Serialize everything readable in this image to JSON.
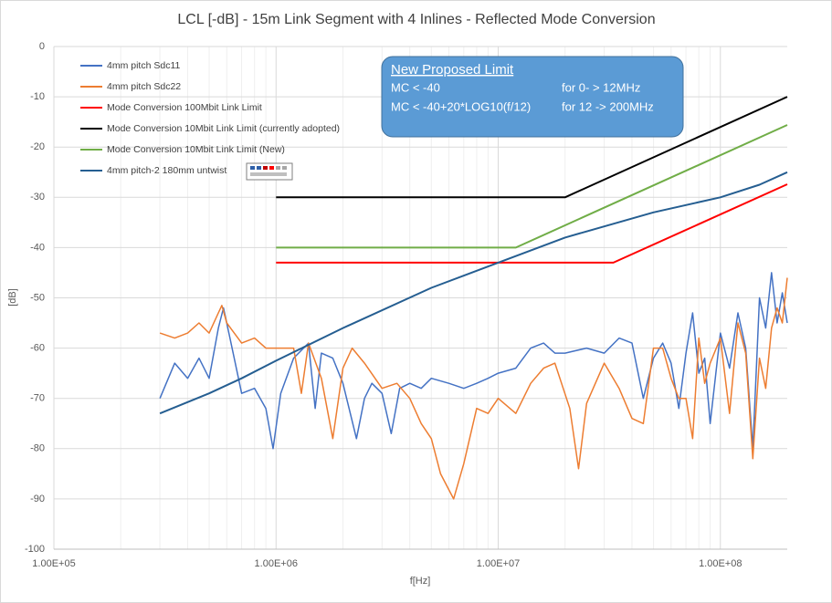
{
  "chart_data": {
    "type": "line",
    "title": "LCL [-dB] - 15m Link Segment with 4 Inlines - Reflected Mode Conversion",
    "x_label": "f[Hz]",
    "y_label": "[dB]",
    "log_x": true,
    "grid": true,
    "minor_grid": true,
    "legend": "upper left",
    "xlim": [
      100000,
      200000000
    ],
    "ylim": [
      -100,
      0
    ],
    "xticks": [
      {
        "value": 100000,
        "label": "1.00E+05"
      },
      {
        "value": 1000000,
        "label": "1.00E+06"
      },
      {
        "value": 10000000,
        "label": "1.00E+07"
      },
      {
        "value": 100000000,
        "label": "1.00E+08"
      }
    ],
    "yticks": [
      0,
      -10,
      -20,
      -30,
      -40,
      -50,
      -60,
      -70,
      -80,
      -90,
      -100
    ],
    "annotation": {
      "title": "New Proposed Limit",
      "lines": [
        [
          "MC < -40",
          "for 0- > 12MHz"
        ],
        [
          "MC < -40+20*LOG10(f/12)",
          "for 12 -> 200MHz"
        ]
      ]
    },
    "series": [
      {
        "name": "4mm pitch Sdc11",
        "color": "#4472c4",
        "x": [
          300000,
          350000,
          400000,
          450000,
          500000,
          550000,
          580000,
          620000,
          700000,
          800000,
          900000,
          970000,
          1050000,
          1200000,
          1400000,
          1500000,
          1600000,
          1800000,
          2000000,
          2300000,
          2500000,
          2700000,
          3000000,
          3300000,
          3600000,
          4000000,
          4500000,
          5000000,
          6000000,
          7000000,
          8000000,
          9000000,
          10000000,
          12000000,
          14000000,
          16000000,
          18000000,
          20000000,
          25000000,
          30000000,
          35000000,
          40000000,
          45000000,
          50000000,
          55000000,
          60000000,
          65000000,
          70000000,
          75000000,
          80000000,
          85000000,
          90000000,
          100000000,
          110000000,
          120000000,
          130000000,
          140000000,
          150000000,
          160000000,
          170000000,
          180000000,
          190000000,
          200000000
        ],
        "values": [
          -70,
          -63,
          -66,
          -62,
          -66,
          -56,
          -52,
          -58,
          -69,
          -68,
          -72,
          -80,
          -69,
          -62,
          -59,
          -72,
          -61,
          -62,
          -67,
          -78,
          -70,
          -67,
          -69,
          -77,
          -68,
          -67,
          -68,
          -66,
          -67,
          -68,
          -67,
          -66,
          -65,
          -64,
          -60,
          -59,
          -61,
          -61,
          -60,
          -61,
          -58,
          -59,
          -70,
          -62,
          -59,
          -63,
          -72,
          -61,
          -53,
          -65,
          -62,
          -75,
          -57,
          -64,
          -53,
          -60,
          -80,
          -50,
          -56,
          -45,
          -55,
          -49,
          -55
        ]
      },
      {
        "name": "4mm pitch Sdc22",
        "color": "#ed7d31",
        "x": [
          300000,
          350000,
          400000,
          450000,
          500000,
          550000,
          570000,
          600000,
          700000,
          800000,
          900000,
          1000000,
          1200000,
          1300000,
          1400000,
          1600000,
          1800000,
          2000000,
          2200000,
          2500000,
          3000000,
          3500000,
          4000000,
          4500000,
          5000000,
          5500000,
          6300000,
          7000000,
          8000000,
          9000000,
          10000000,
          12000000,
          14000000,
          16000000,
          18000000,
          21000000,
          23000000,
          25000000,
          30000000,
          35000000,
          40000000,
          45000000,
          50000000,
          55000000,
          60000000,
          65000000,
          70000000,
          75000000,
          80000000,
          85000000,
          90000000,
          100000000,
          110000000,
          120000000,
          130000000,
          140000000,
          150000000,
          160000000,
          170000000,
          180000000,
          190000000,
          200000000
        ],
        "values": [
          -57,
          -58,
          -57,
          -55,
          -57,
          -53,
          -51.5,
          -55,
          -59,
          -58,
          -60,
          -60,
          -60,
          -69,
          -59,
          -66,
          -78,
          -64,
          -60,
          -63,
          -68,
          -67,
          -70,
          -75,
          -78,
          -85,
          -90,
          -83,
          -72,
          -73,
          -70,
          -73,
          -67,
          -64,
          -63,
          -72,
          -84,
          -71,
          -63,
          -68,
          -74,
          -75,
          -60,
          -60,
          -66,
          -70,
          -70,
          -78,
          -58,
          -67,
          -63,
          -58,
          -73,
          -55,
          -61,
          -82,
          -62,
          -68,
          -56,
          -52,
          -55,
          -46
        ]
      },
      {
        "name": "Mode Conversion 100Mbit Link Limit",
        "color": "#ff0000",
        "x": [
          1000000,
          33000000,
          200000000
        ],
        "values": [
          -43,
          -43,
          -27.4
        ]
      },
      {
        "name": "Mode Conversion 10Mbit Link Limit (currently adopted)",
        "color": "#000000",
        "x": [
          1000000,
          20000000,
          200000000
        ],
        "values": [
          -30,
          -30,
          -10
        ]
      },
      {
        "name": "Mode Conversion 10Mbit Link Limit (New)",
        "color": "#70ad47",
        "x": [
          1000000,
          12000000,
          200000000
        ],
        "values": [
          -40,
          -40,
          -15.6
        ]
      },
      {
        "name": "4mm pitch-2 180mm untwist",
        "color": "#255e91",
        "x": [
          300000,
          500000,
          700000,
          1000000,
          2000000,
          5000000,
          10000000,
          20000000,
          50000000,
          100000000,
          150000000,
          200000000
        ],
        "values": [
          -73,
          -69,
          -66,
          -62.5,
          -56,
          -48,
          -43,
          -38,
          -33,
          -30,
          -27.5,
          -25
        ]
      }
    ]
  }
}
